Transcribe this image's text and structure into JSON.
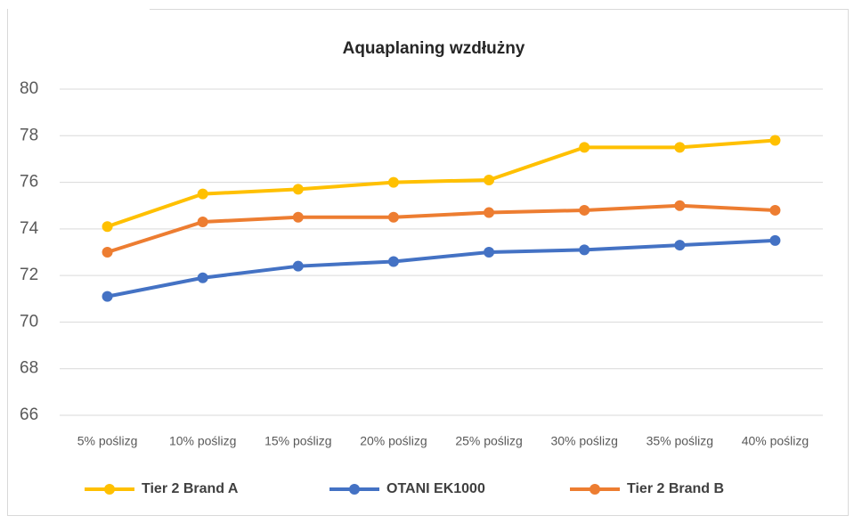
{
  "chart_data": {
    "type": "line",
    "title": "Aquaplaning wzdłużny",
    "categories": [
      "5% poślizg",
      "10% poślizg",
      "15% poślizg",
      "20% poślizg",
      "25% poślizg",
      "30% poślizg",
      "35% poślizg",
      "40% poślizg"
    ],
    "series": [
      {
        "name": "Tier 2 Brand A",
        "color": "#FFC000",
        "values": [
          74.1,
          75.5,
          75.7,
          76.0,
          76.1,
          77.5,
          77.5,
          77.8
        ]
      },
      {
        "name": "OTANI EK1000",
        "color": "#4472C4",
        "values": [
          71.1,
          71.9,
          72.4,
          72.6,
          73.0,
          73.1,
          73.3,
          73.5
        ]
      },
      {
        "name": "Tier 2 Brand B",
        "color": "#ED7D31",
        "values": [
          73.0,
          74.3,
          74.5,
          74.5,
          74.7,
          74.8,
          75.0,
          74.8
        ]
      }
    ],
    "ylim": [
      66,
      80
    ],
    "yticks": [
      66,
      68,
      70,
      72,
      74,
      76,
      78,
      80
    ],
    "grid": true,
    "legend": "bottom"
  }
}
